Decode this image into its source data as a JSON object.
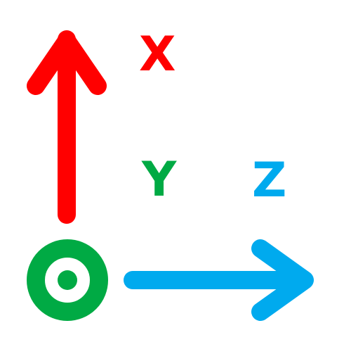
{
  "axes": {
    "x": {
      "label": "X",
      "color": "#ff0000",
      "direction": "up",
      "icon": "arrow-up-icon"
    },
    "y": {
      "label": "Y",
      "color": "#00aa44",
      "direction": "out-of-screen",
      "icon": "dot-in-circle-icon"
    },
    "z": {
      "label": "Z",
      "color": "#00aaee",
      "direction": "right",
      "icon": "arrow-right-icon"
    }
  }
}
